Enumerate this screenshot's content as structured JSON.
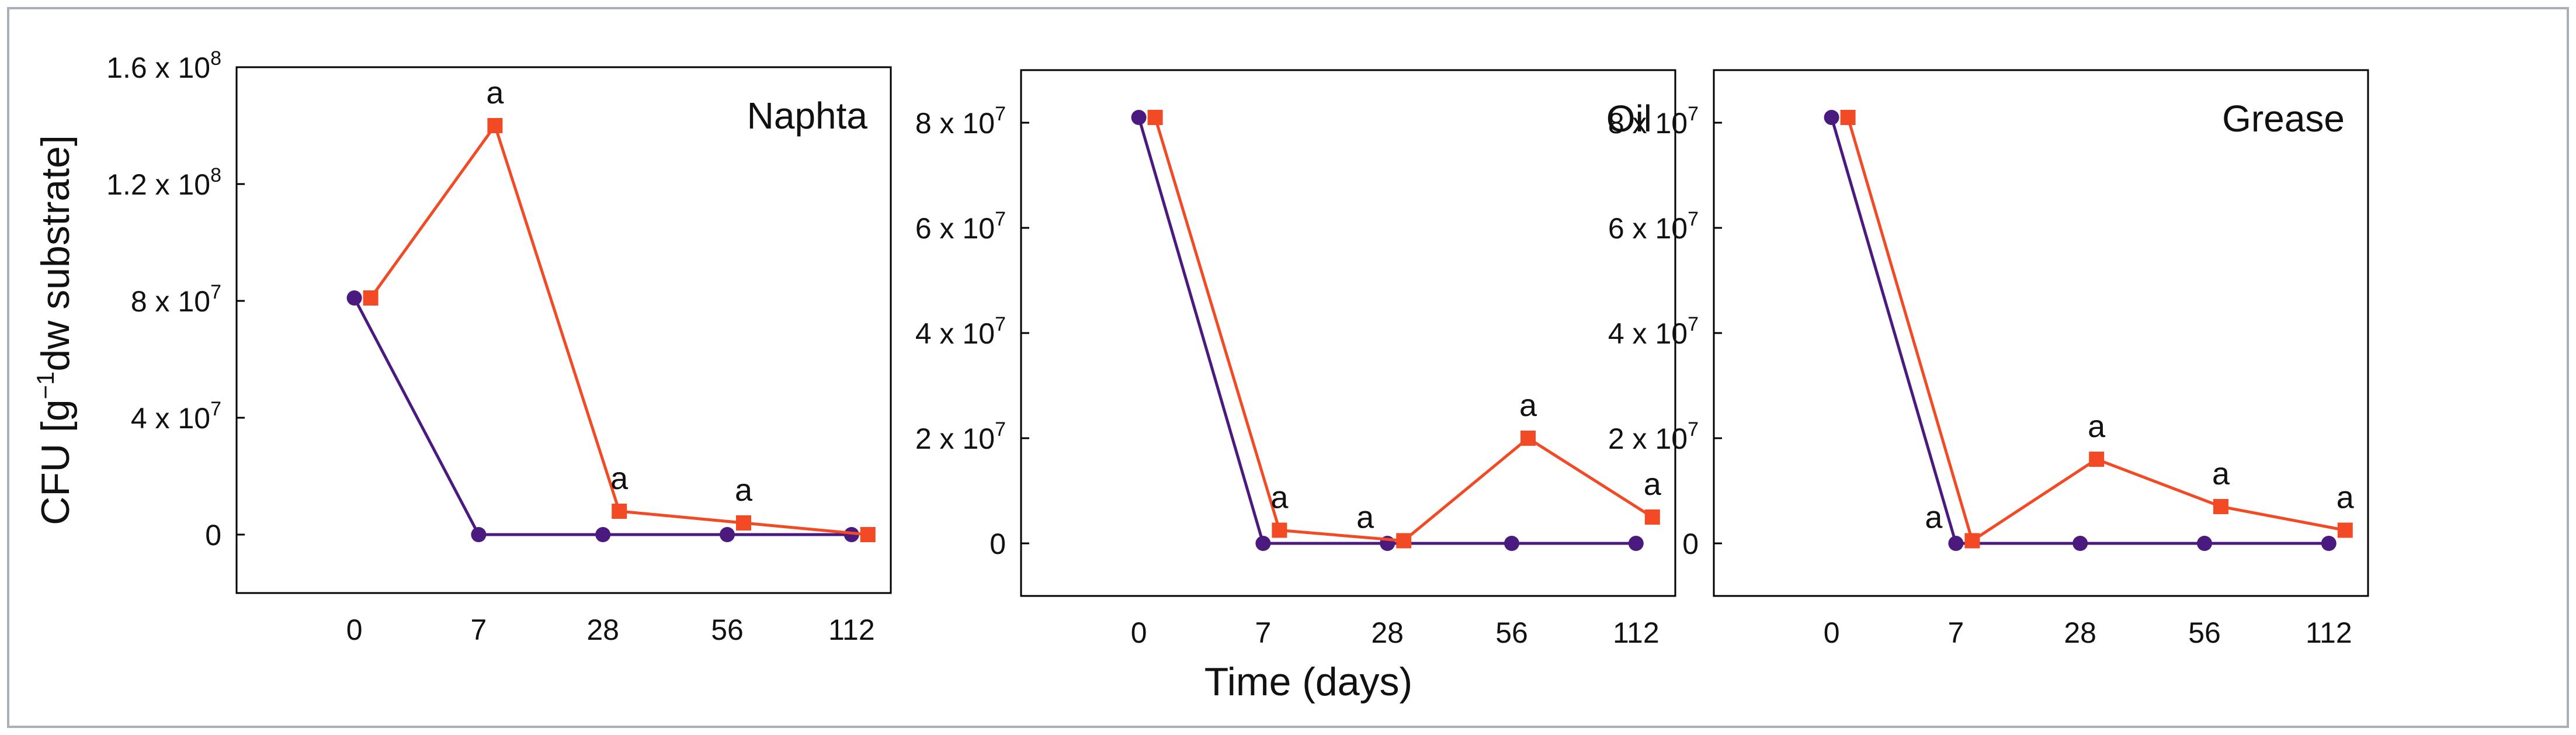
{
  "figure": {
    "y_axis_label": "CFU [g",
    "y_axis_label_sup": "−1",
    "y_axis_label_tail": "dw substrate]",
    "x_axis_label": "Time (days)"
  },
  "colors": {
    "series_circle": "#4b1a7e",
    "series_square": "#f24a24",
    "frame": "#000000",
    "outer_border": "#a9b0b8"
  },
  "chart_data": [
    {
      "type": "line",
      "title": "Naphta",
      "categories": [
        "0",
        "7",
        "28",
        "56",
        "112"
      ],
      "ylim": [
        -20000000,
        160000000
      ],
      "y_ticks": [
        0,
        40000000,
        80000000,
        120000000,
        160000000
      ],
      "y_tick_labels": [
        {
          "mant": "0",
          "exp": ""
        },
        {
          "mant": "4 x 10",
          "exp": "7"
        },
        {
          "mant": "8 x 10",
          "exp": "7"
        },
        {
          "mant": "1.2 x 10",
          "exp": "8"
        },
        {
          "mant": "1.6  x 10",
          "exp": "8"
        }
      ],
      "series": [
        {
          "name": "circle",
          "marker": "circle",
          "values": [
            81000000,
            0,
            0,
            0,
            0
          ]
        },
        {
          "name": "square",
          "marker": "square",
          "values": [
            81000000,
            140000000,
            8000000,
            4000000,
            0
          ]
        }
      ],
      "annotations": [
        {
          "index": 1,
          "text": "a"
        },
        {
          "index": 2,
          "text": "a"
        },
        {
          "index": 3,
          "text": "a"
        }
      ]
    },
    {
      "type": "line",
      "title": "Oil",
      "categories": [
        "0",
        "7",
        "28",
        "56",
        "112"
      ],
      "ylim": [
        -10000000,
        90000000
      ],
      "y_ticks": [
        0,
        20000000,
        40000000,
        60000000,
        80000000
      ],
      "y_tick_labels": [
        {
          "mant": "0",
          "exp": ""
        },
        {
          "mant": "2 x 10",
          "exp": "7"
        },
        {
          "mant": "4 x 10",
          "exp": "7"
        },
        {
          "mant": "6 x 10",
          "exp": "7"
        },
        {
          "mant": "8 x 10",
          "exp": "7"
        }
      ],
      "series": [
        {
          "name": "circle",
          "marker": "circle",
          "values": [
            81000000,
            0,
            0,
            0,
            0
          ]
        },
        {
          "name": "square",
          "marker": "square",
          "values": [
            81000000,
            2500000,
            500000,
            20000000,
            5000000
          ]
        }
      ],
      "annotations": [
        {
          "index": 1,
          "text": "a"
        },
        {
          "index": 2,
          "text": "a"
        },
        {
          "index": 3,
          "text": "a"
        },
        {
          "index": 4,
          "text": "a"
        }
      ]
    },
    {
      "type": "line",
      "title": "Grease",
      "categories": [
        "0",
        "7",
        "28",
        "56",
        "112"
      ],
      "ylim": [
        -10000000,
        90000000
      ],
      "y_ticks": [
        0,
        20000000,
        40000000,
        60000000,
        80000000
      ],
      "y_tick_labels": [
        {
          "mant": "0",
          "exp": ""
        },
        {
          "mant": "2 x 10",
          "exp": "7"
        },
        {
          "mant": "4 x 10",
          "exp": "7"
        },
        {
          "mant": "6 x 10",
          "exp": "7"
        },
        {
          "mant": "8 x 10",
          "exp": "7"
        }
      ],
      "series": [
        {
          "name": "circle",
          "marker": "circle",
          "values": [
            81000000,
            0,
            0,
            0,
            0
          ]
        },
        {
          "name": "square",
          "marker": "square",
          "values": [
            81000000,
            500000,
            16000000,
            7000000,
            2500000
          ]
        }
      ],
      "annotations": [
        {
          "index": 1,
          "text": "a"
        },
        {
          "index": 2,
          "text": "a"
        },
        {
          "index": 3,
          "text": "a"
        },
        {
          "index": 4,
          "text": "a"
        }
      ]
    }
  ]
}
